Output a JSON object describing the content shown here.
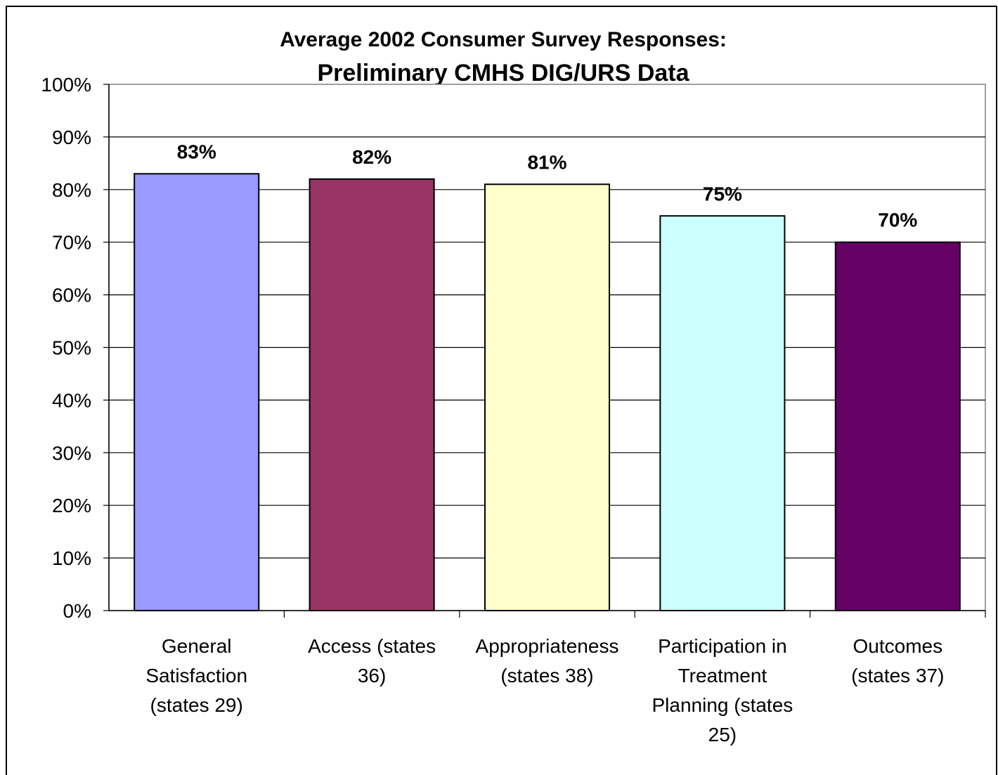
{
  "chart_data": {
    "type": "bar",
    "title": "Average 2002 Consumer Survey Responses:",
    "subtitle": "Preliminary CMHS DIG/URS Data",
    "xlabel": "",
    "ylabel": "",
    "ylim": [
      0,
      100
    ],
    "y_ticks": [
      "0%",
      "10%",
      "20%",
      "30%",
      "40%",
      "50%",
      "60%",
      "70%",
      "80%",
      "90%",
      "100%"
    ],
    "grid": true,
    "legend": "none",
    "categories": [
      [
        "General",
        "Satisfaction",
        "(states 29)"
      ],
      [
        "Access (states",
        "36)"
      ],
      [
        "Appropriateness",
        "(states 38)"
      ],
      [
        "Participation in",
        "Treatment",
        "Planning (states",
        "25)"
      ],
      [
        "Outcomes",
        "(states 37)"
      ]
    ],
    "values": [
      83,
      82,
      81,
      75,
      70
    ],
    "value_labels": [
      "83%",
      "82%",
      "81%",
      "75%",
      "70%"
    ],
    "bar_colors": [
      "#9999ff",
      "#993366",
      "#ffffcc",
      "#ccffff",
      "#660066"
    ]
  }
}
